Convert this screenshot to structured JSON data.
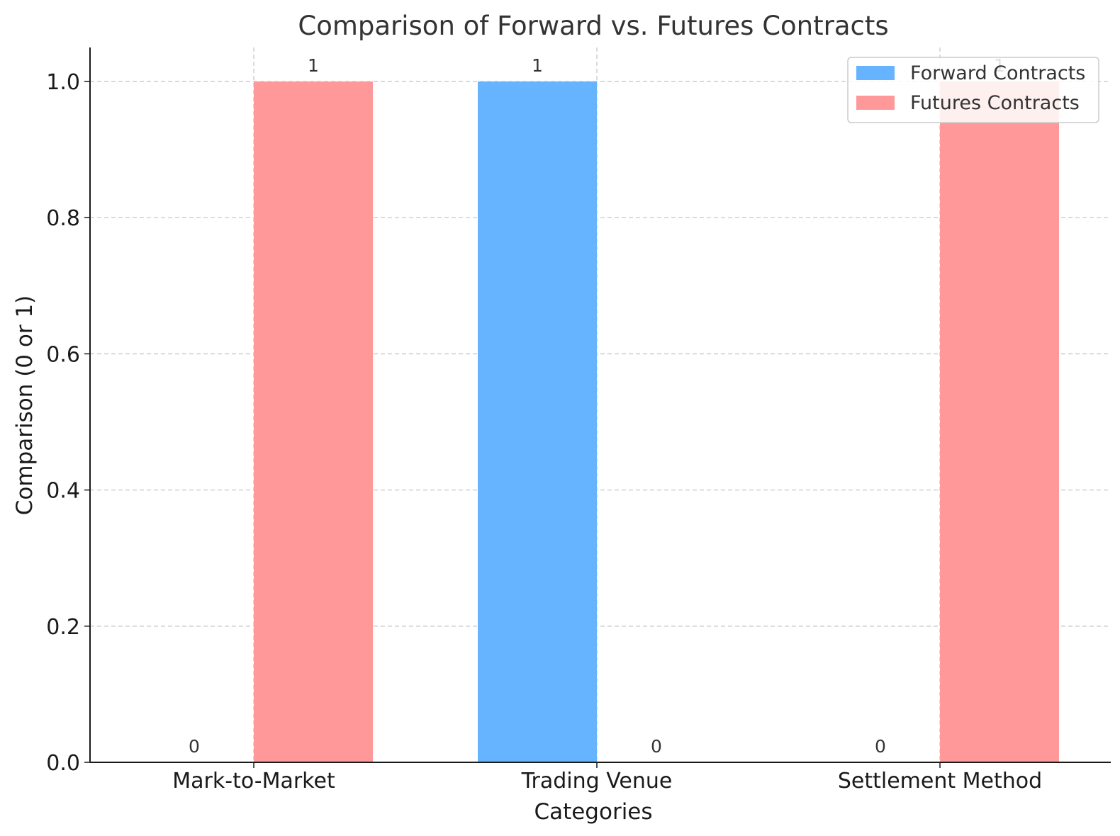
{
  "chart_data": {
    "type": "bar",
    "title": "Comparison of Forward vs. Futures Contracts",
    "xlabel": "Categories",
    "ylabel": "Comparison (0 or 1)",
    "categories": [
      "Mark-to-Market",
      "Trading Venue",
      "Settlement Method"
    ],
    "series": [
      {
        "name": "Forward Contracts",
        "values": [
          0,
          1,
          0
        ],
        "color": "#66b3ff"
      },
      {
        "name": "Futures Contracts",
        "values": [
          1,
          0,
          1
        ],
        "color": "#ff9999"
      }
    ],
    "ylim": [
      0,
      1.05
    ],
    "yticks": [
      "0.0",
      "0.2",
      "0.4",
      "0.6",
      "0.8",
      "1.0"
    ],
    "grid": true,
    "legend_position": "top-right"
  }
}
